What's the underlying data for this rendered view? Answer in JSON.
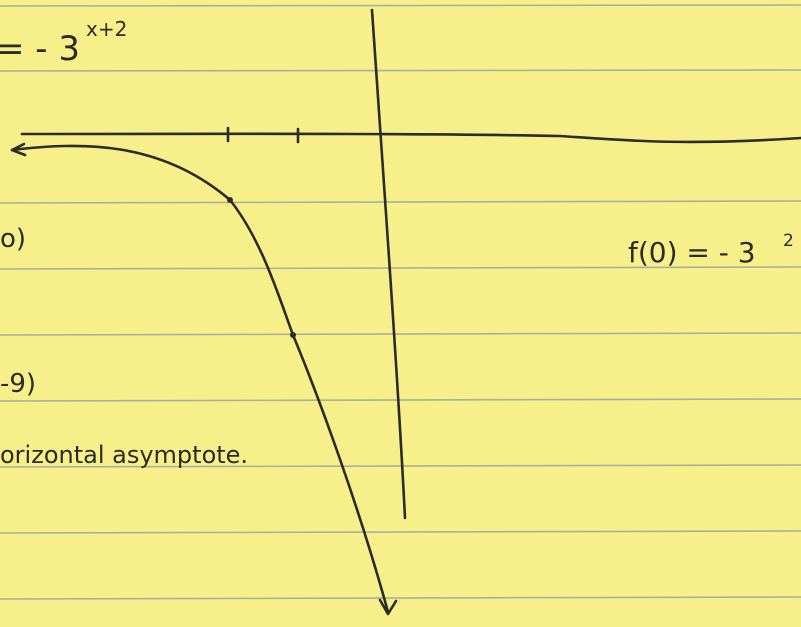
{
  "equation": {
    "base": "= - 3",
    "exponent": "x+2"
  },
  "notes": {
    "point_1": "o)",
    "point_2": "-9)",
    "asymptote": "orizontal asymptote."
  },
  "evaluation": {
    "base": "f(0) = - 3",
    "exponent": "2"
  }
}
